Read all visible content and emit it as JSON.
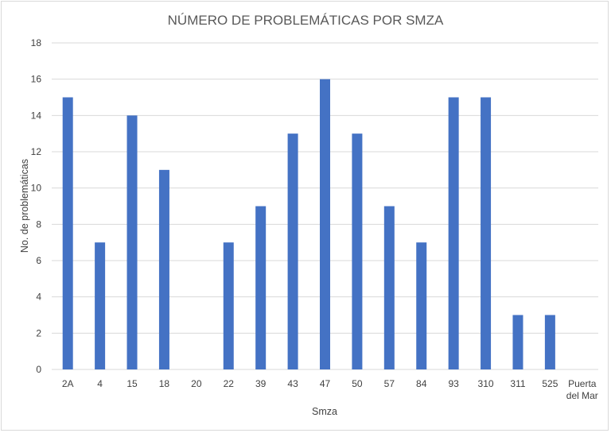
{
  "chart_data": {
    "type": "bar",
    "title": "NÚMERO DE PROBLEMÁTICAS POR SMZA",
    "xlabel": "Smza",
    "ylabel": "No. de problemáticas",
    "categories": [
      "2A",
      "4",
      "15",
      "18",
      "20",
      "22",
      "39",
      "43",
      "47",
      "50",
      "57",
      "84",
      "93",
      "310",
      "311",
      "525",
      "Puerta del Mar"
    ],
    "values": [
      15,
      7,
      14,
      11,
      0,
      7,
      9,
      13,
      16,
      13,
      9,
      7,
      15,
      15,
      3,
      3,
      0
    ],
    "ylim": [
      0,
      18
    ],
    "yticks": [
      "0",
      "2",
      "4",
      "6",
      "8",
      "10",
      "12",
      "14",
      "16",
      "18"
    ],
    "grid": true,
    "legend": "none",
    "bar_color": "#4472c4",
    "grid_color": "#d9d9d9"
  }
}
